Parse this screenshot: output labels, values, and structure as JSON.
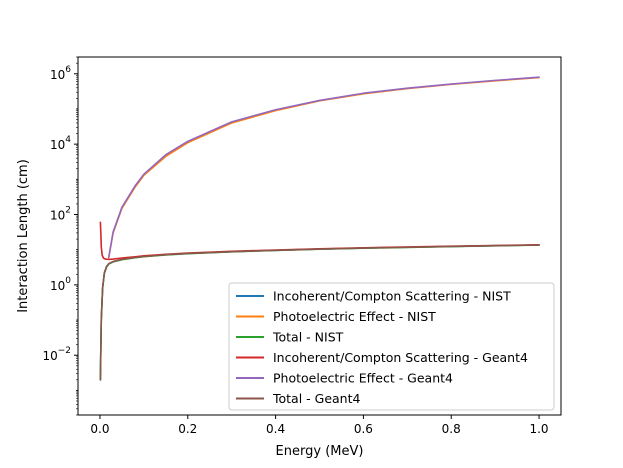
{
  "chart_data": {
    "type": "line",
    "title": "",
    "xlabel": "Energy (MeV)",
    "ylabel": "Interaction Length (cm)",
    "xlim": [
      -0.05,
      1.05
    ],
    "ylim": [
      0.0002,
      3000000
    ],
    "yscale": "log",
    "grid": false,
    "legend_position": "lower-right",
    "x_ticks": [
      {
        "value": 0.0,
        "label": "0.0"
      },
      {
        "value": 0.2,
        "label": "0.2"
      },
      {
        "value": 0.4,
        "label": "0.4"
      },
      {
        "value": 0.6,
        "label": "0.6"
      },
      {
        "value": 0.8,
        "label": "0.8"
      },
      {
        "value": 1.0,
        "label": "1.0"
      }
    ],
    "y_ticks": [
      {
        "value": 0.01,
        "base": "10",
        "exp": "−2"
      },
      {
        "value": 1,
        "base": "10",
        "exp": "0"
      },
      {
        "value": 100,
        "base": "10",
        "exp": "2"
      },
      {
        "value": 10000,
        "base": "10",
        "exp": "4"
      },
      {
        "value": 1000000,
        "base": "10",
        "exp": "6"
      }
    ],
    "series": [
      {
        "name": "Incoherent/Compton Scattering - NIST",
        "color": "#1f77b4",
        "x": [
          0.001,
          0.003,
          0.006,
          0.01,
          0.015,
          0.02,
          0.03,
          0.05,
          0.08,
          0.1,
          0.15,
          0.2,
          0.3,
          0.4,
          0.5,
          0.6,
          0.8,
          1.0
        ],
        "y": [
          0.002,
          0.1,
          0.8,
          2.2,
          3.3,
          4.0,
          4.6,
          5.3,
          6.0,
          6.4,
          7.2,
          7.8,
          8.8,
          9.6,
          10.4,
          11.1,
          12.4,
          13.6
        ]
      },
      {
        "name": "Photoelectric Effect - NIST",
        "color": "#ff7f0e",
        "x": [
          0.02,
          0.03,
          0.05,
          0.08,
          0.1,
          0.15,
          0.2,
          0.3,
          0.4,
          0.5,
          0.6,
          0.7,
          0.8,
          0.9,
          1.0
        ],
        "y": [
          6.0,
          30,
          150,
          600,
          1300,
          4500,
          11000,
          40000,
          90000,
          170000,
          270000,
          380000,
          500000,
          630000,
          780000
        ]
      },
      {
        "name": "Total - NIST",
        "color": "#2ca02c",
        "x": [
          0.001,
          0.003,
          0.006,
          0.01,
          0.015,
          0.02,
          0.03,
          0.05,
          0.08,
          0.1,
          0.15,
          0.2,
          0.3,
          0.4,
          0.5,
          0.6,
          0.8,
          1.0
        ],
        "y": [
          0.002,
          0.1,
          0.8,
          2.1,
          3.2,
          3.9,
          4.5,
          5.2,
          5.9,
          6.3,
          7.1,
          7.7,
          8.7,
          9.5,
          10.3,
          11.0,
          12.3,
          13.5
        ]
      },
      {
        "name": "Incoherent/Compton Scattering - Geant4",
        "color": "#d62728",
        "x": [
          0.001,
          0.002,
          0.003,
          0.005,
          0.008,
          0.012,
          0.02,
          0.03,
          0.05,
          0.08,
          0.1,
          0.15,
          0.2,
          0.3,
          0.4,
          0.5,
          0.6,
          0.8,
          1.0
        ],
        "y": [
          60,
          30,
          12,
          7,
          5.8,
          5.4,
          5.3,
          5.4,
          5.8,
          6.3,
          6.7,
          7.4,
          8.0,
          9.0,
          9.8,
          10.6,
          11.3,
          12.6,
          13.8
        ]
      },
      {
        "name": "Photoelectric Effect - Geant4",
        "color": "#9467bd",
        "x": [
          0.02,
          0.03,
          0.05,
          0.08,
          0.1,
          0.15,
          0.2,
          0.3,
          0.4,
          0.5,
          0.6,
          0.7,
          0.8,
          0.9,
          1.0
        ],
        "y": [
          6.0,
          32,
          160,
          650,
          1400,
          5000,
          12000,
          43000,
          95000,
          175000,
          280000,
          390000,
          510000,
          650000,
          800000
        ]
      },
      {
        "name": "Total - Geant4",
        "color": "#8c564b",
        "x": [
          0.001,
          0.003,
          0.006,
          0.01,
          0.015,
          0.02,
          0.03,
          0.05,
          0.08,
          0.1,
          0.15,
          0.2,
          0.3,
          0.4,
          0.5,
          0.6,
          0.8,
          1.0
        ],
        "y": [
          0.002,
          0.1,
          0.8,
          2.2,
          3.3,
          4.0,
          4.6,
          5.3,
          6.0,
          6.4,
          7.2,
          7.8,
          8.8,
          9.6,
          10.4,
          11.1,
          12.4,
          13.6
        ]
      }
    ]
  }
}
